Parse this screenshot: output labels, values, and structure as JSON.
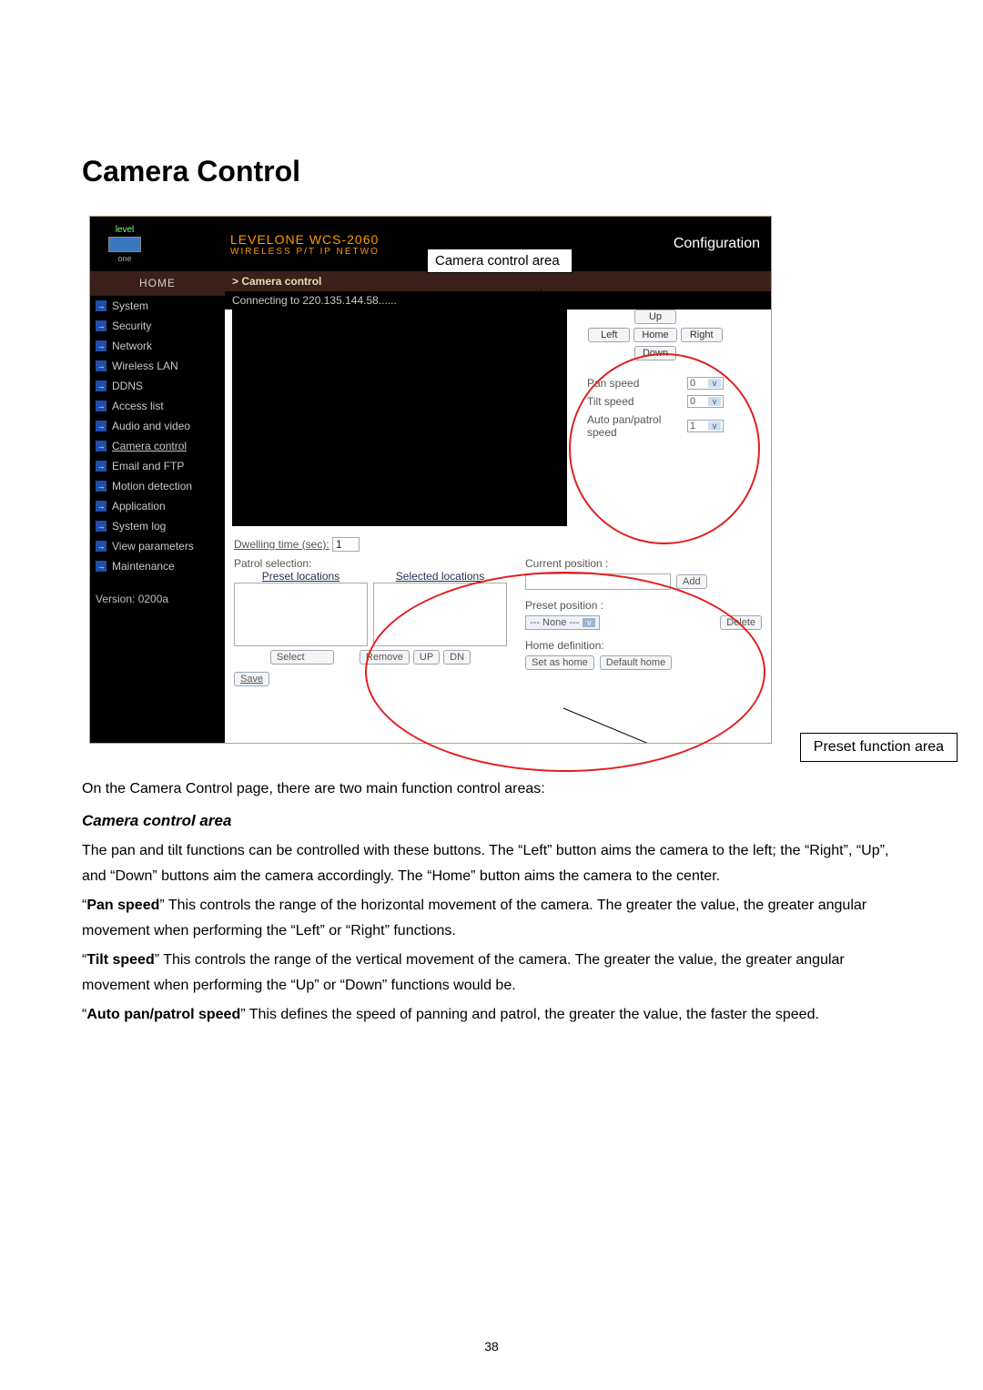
{
  "doc": {
    "title": "Camera Control",
    "callout_camera": "Camera control area",
    "callout_preset": "Preset function area",
    "intro": "On the Camera Control page, there are two main function control areas:",
    "subhead": "Camera control area",
    "para1": "The pan and tilt functions can be controlled with these buttons. The “Left” button aims the camera to the left; the “Right”, “Up”, and “Down” buttons aim the camera accordingly. The “Home” button aims the camera to the center.",
    "para2a": "“",
    "para2b": "Pan speed",
    "para2c": "” This controls the range of the horizontal movement of the camera. The greater the value, the greater angular movement when performing the “Left” or “Right” functions.",
    "para3a": "“",
    "para3b": "Tilt speed",
    "para3c": "” This controls the range of the vertical movement of the camera. The greater the value, the greater angular movement when performing the “Up” or “Down” functions would be.",
    "para4a": "  “",
    "para4b": "Auto pan/patrol speed",
    "para4c": "” This defines the speed of panning and patrol, the greater the value, the faster the speed.",
    "page_number": "38"
  },
  "ui": {
    "logo_top": "level",
    "logo_bottom": "one",
    "product_name": "LEVELONE WCS-2060",
    "product_sub": "WIRELESS P/T IP NETWO",
    "config_label": "Configuration",
    "home": "HOME",
    "nav": [
      "System",
      "Security",
      "Network",
      "Wireless LAN",
      "DDNS",
      "Access list",
      "Audio and video",
      "Camera control",
      "Email and FTP",
      "Motion detection",
      "Application",
      "System log",
      "View parameters",
      "Maintenance"
    ],
    "active_index": 7,
    "version": "Version: 0200a",
    "crumb": "> Camera control",
    "status": "Connecting to 220.135.144.58......",
    "btn_up": "Up",
    "btn_down": "Down",
    "btn_left": "Left",
    "btn_right": "Right",
    "btn_home": "Home",
    "pan_label": "Pan speed",
    "tilt_label": "Tilt speed",
    "auto_label": "Auto pan/patrol speed",
    "pan_val": "0",
    "tilt_val": "0",
    "auto_val": "1",
    "dwell_label": "Dwelling time (sec):",
    "dwell_val": "1",
    "patrol_label": "Patrol selection:",
    "preset_loc": "Preset locations",
    "selected_loc": "Selected locations",
    "btn_select": "Select",
    "btn_remove": "Remove",
    "btn_upmove": "UP",
    "btn_dnmove": "DN",
    "btn_save": "Save",
    "cur_pos": "Current position :",
    "btn_add": "Add",
    "preset_pos": "Preset position :",
    "none_opt": "--- None ---",
    "btn_delete": "Delete",
    "home_def": "Home definition:",
    "btn_sethome": "Set as home",
    "btn_defhome": "Default home"
  },
  "colors": {
    "accent_red": "#e02020",
    "dark_bg": "#000000",
    "brown": "#3b1f1a",
    "orange": "#ff9900"
  }
}
